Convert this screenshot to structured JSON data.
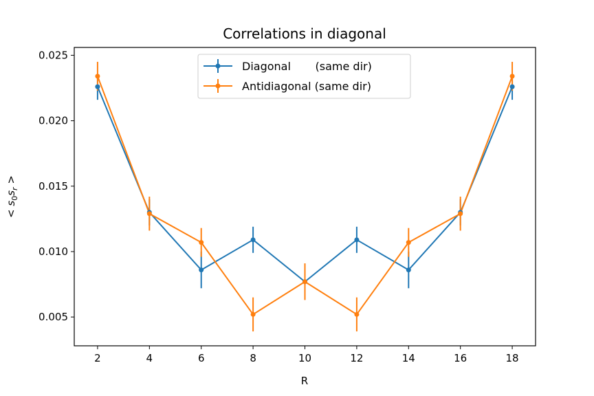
{
  "chart_data": {
    "type": "line",
    "title": "Correlations in diagonal",
    "xlabel": "R",
    "ylabel": "< s0 sr >",
    "xlim": [
      1.1,
      18.9
    ],
    "ylim": [
      0.0028,
      0.0256
    ],
    "xticks": [
      2,
      4,
      6,
      8,
      10,
      12,
      14,
      16,
      18
    ],
    "xtick_labels": [
      "2",
      "4",
      "6",
      "8",
      "10",
      "12",
      "14",
      "16",
      "18"
    ],
    "yticks": [
      0.005,
      0.01,
      0.015,
      0.02,
      0.025
    ],
    "ytick_labels": [
      "0.005",
      "0.010",
      "0.015",
      "0.020",
      "0.025"
    ],
    "grid": false,
    "legend_position": "upper-center",
    "x": [
      2,
      4,
      6,
      8,
      10,
      12,
      14,
      16,
      18
    ],
    "series": [
      {
        "name": "Diagonal       (same dir)",
        "color": "#1f77b4",
        "values": [
          0.0226,
          0.013,
          0.0086,
          0.0109,
          0.0077,
          0.0109,
          0.0086,
          0.013,
          0.0226
        ],
        "errors": [
          0.001,
          0.001,
          0.0014,
          0.001,
          0.001,
          0.001,
          0.0014,
          0.001,
          0.001
        ]
      },
      {
        "name": "Antidiagonal (same dir)",
        "color": "#ff7f0e",
        "values": [
          0.0234,
          0.0129,
          0.0107,
          0.0052,
          0.0077,
          0.0052,
          0.0107,
          0.0129,
          0.0234
        ],
        "errors": [
          0.0011,
          0.0013,
          0.0011,
          0.0013,
          0.0014,
          0.0013,
          0.0011,
          0.0013,
          0.0011
        ]
      }
    ]
  }
}
